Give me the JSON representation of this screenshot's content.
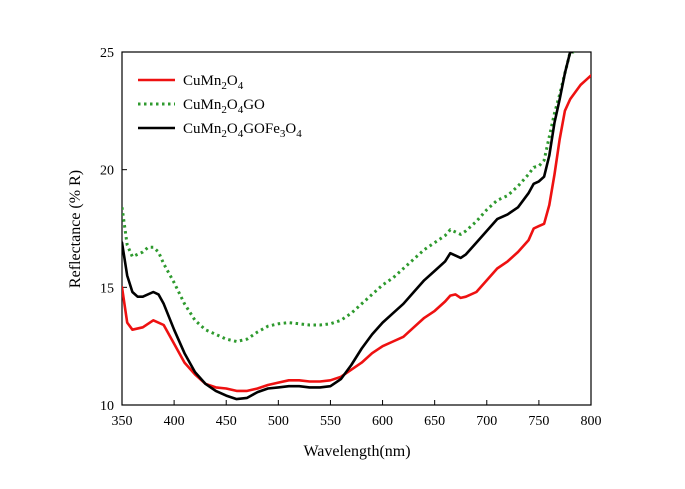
{
  "chart_data": {
    "type": "line",
    "title": "",
    "xlabel": "Wavelength(nm)",
    "ylabel": "Reflectance (% R)",
    "xlim": [
      350,
      800
    ],
    "ylim": [
      10,
      25
    ],
    "x_ticks": [
      350,
      400,
      450,
      500,
      550,
      600,
      650,
      700,
      750,
      800
    ],
    "y_ticks": [
      10,
      15,
      20,
      25
    ],
    "legend_position": "top-left",
    "series": [
      {
        "name": "CuMn2O4",
        "legend": {
          "base": "CuMn",
          "s1": "2",
          "m1": "O",
          "s2": "4"
        },
        "color": "#ee1111",
        "style": "solid",
        "points": [
          [
            350,
            15.0
          ],
          [
            355,
            13.5
          ],
          [
            360,
            13.2
          ],
          [
            370,
            13.3
          ],
          [
            380,
            13.6
          ],
          [
            390,
            13.4
          ],
          [
            400,
            12.6
          ],
          [
            410,
            11.8
          ],
          [
            420,
            11.3
          ],
          [
            430,
            10.9
          ],
          [
            440,
            10.75
          ],
          [
            450,
            10.7
          ],
          [
            460,
            10.6
          ],
          [
            470,
            10.6
          ],
          [
            480,
            10.7
          ],
          [
            490,
            10.85
          ],
          [
            500,
            10.95
          ],
          [
            510,
            11.05
          ],
          [
            520,
            11.05
          ],
          [
            530,
            11.0
          ],
          [
            540,
            11.0
          ],
          [
            550,
            11.05
          ],
          [
            560,
            11.2
          ],
          [
            570,
            11.5
          ],
          [
            580,
            11.8
          ],
          [
            590,
            12.2
          ],
          [
            600,
            12.5
          ],
          [
            610,
            12.7
          ],
          [
            620,
            12.9
          ],
          [
            630,
            13.3
          ],
          [
            640,
            13.7
          ],
          [
            650,
            14.0
          ],
          [
            660,
            14.4
          ],
          [
            665,
            14.65
          ],
          [
            670,
            14.7
          ],
          [
            675,
            14.55
          ],
          [
            680,
            14.6
          ],
          [
            690,
            14.8
          ],
          [
            700,
            15.3
          ],
          [
            710,
            15.8
          ],
          [
            720,
            16.1
          ],
          [
            730,
            16.5
          ],
          [
            740,
            17.0
          ],
          [
            745,
            17.5
          ],
          [
            750,
            17.6
          ],
          [
            755,
            17.7
          ],
          [
            760,
            18.5
          ],
          [
            765,
            19.8
          ],
          [
            770,
            21.3
          ],
          [
            775,
            22.5
          ],
          [
            780,
            23.0
          ],
          [
            785,
            23.3
          ],
          [
            790,
            23.6
          ],
          [
            795,
            23.8
          ],
          [
            800,
            24.0
          ]
        ]
      },
      {
        "name": "CuMn2O4GO",
        "legend": {
          "base": "CuMn",
          "s1": "2",
          "m1": "O",
          "s2": "4",
          "tail": "GO"
        },
        "color": "#2e9a2e",
        "style": "dotted",
        "points": [
          [
            350,
            18.4
          ],
          [
            355,
            16.8
          ],
          [
            360,
            16.3
          ],
          [
            365,
            16.4
          ],
          [
            370,
            16.5
          ],
          [
            375,
            16.7
          ],
          [
            380,
            16.7
          ],
          [
            385,
            16.5
          ],
          [
            390,
            16.0
          ],
          [
            400,
            15.2
          ],
          [
            410,
            14.3
          ],
          [
            420,
            13.6
          ],
          [
            430,
            13.2
          ],
          [
            440,
            13.0
          ],
          [
            450,
            12.8
          ],
          [
            460,
            12.7
          ],
          [
            470,
            12.8
          ],
          [
            480,
            13.1
          ],
          [
            490,
            13.35
          ],
          [
            500,
            13.45
          ],
          [
            510,
            13.5
          ],
          [
            520,
            13.45
          ],
          [
            530,
            13.4
          ],
          [
            540,
            13.4
          ],
          [
            550,
            13.45
          ],
          [
            560,
            13.6
          ],
          [
            570,
            13.9
          ],
          [
            580,
            14.3
          ],
          [
            590,
            14.7
          ],
          [
            600,
            15.1
          ],
          [
            610,
            15.4
          ],
          [
            620,
            15.8
          ],
          [
            630,
            16.2
          ],
          [
            640,
            16.6
          ],
          [
            650,
            16.9
          ],
          [
            660,
            17.2
          ],
          [
            665,
            17.45
          ],
          [
            670,
            17.35
          ],
          [
            675,
            17.25
          ],
          [
            680,
            17.4
          ],
          [
            690,
            17.8
          ],
          [
            700,
            18.3
          ],
          [
            710,
            18.7
          ],
          [
            720,
            18.9
          ],
          [
            730,
            19.3
          ],
          [
            740,
            19.8
          ],
          [
            745,
            20.1
          ],
          [
            750,
            20.15
          ],
          [
            755,
            20.4
          ],
          [
            760,
            21.4
          ],
          [
            765,
            22.4
          ],
          [
            770,
            23.2
          ],
          [
            775,
            24.1
          ],
          [
            780,
            25.0
          ],
          [
            785,
            25.0
          ]
        ]
      },
      {
        "name": "CuMn2O4GOFe3O4",
        "legend": {
          "base": "CuMn",
          "s1": "2",
          "m1": "O",
          "s2": "4",
          "tail": "GOFe",
          "s3": "3",
          "m2": "O",
          "s4": "4"
        },
        "color": "#000000",
        "style": "solid",
        "points": [
          [
            350,
            16.9
          ],
          [
            355,
            15.5
          ],
          [
            360,
            14.8
          ],
          [
            365,
            14.6
          ],
          [
            370,
            14.6
          ],
          [
            380,
            14.8
          ],
          [
            385,
            14.7
          ],
          [
            390,
            14.3
          ],
          [
            400,
            13.2
          ],
          [
            410,
            12.2
          ],
          [
            420,
            11.4
          ],
          [
            430,
            10.9
          ],
          [
            440,
            10.6
          ],
          [
            450,
            10.4
          ],
          [
            460,
            10.25
          ],
          [
            470,
            10.3
          ],
          [
            480,
            10.55
          ],
          [
            490,
            10.7
          ],
          [
            500,
            10.75
          ],
          [
            510,
            10.8
          ],
          [
            520,
            10.8
          ],
          [
            530,
            10.75
          ],
          [
            540,
            10.75
          ],
          [
            550,
            10.8
          ],
          [
            560,
            11.1
          ],
          [
            570,
            11.7
          ],
          [
            580,
            12.4
          ],
          [
            590,
            13.0
          ],
          [
            600,
            13.5
          ],
          [
            610,
            13.9
          ],
          [
            620,
            14.3
          ],
          [
            630,
            14.8
          ],
          [
            640,
            15.3
          ],
          [
            650,
            15.7
          ],
          [
            660,
            16.1
          ],
          [
            665,
            16.45
          ],
          [
            670,
            16.35
          ],
          [
            675,
            16.25
          ],
          [
            680,
            16.4
          ],
          [
            690,
            16.9
          ],
          [
            700,
            17.4
          ],
          [
            710,
            17.9
          ],
          [
            720,
            18.1
          ],
          [
            730,
            18.4
          ],
          [
            740,
            19.0
          ],
          [
            745,
            19.4
          ],
          [
            750,
            19.5
          ],
          [
            755,
            19.7
          ],
          [
            760,
            20.6
          ],
          [
            765,
            22.0
          ],
          [
            770,
            23.0
          ],
          [
            775,
            24.1
          ],
          [
            780,
            25.0
          ],
          [
            782,
            25.0
          ]
        ]
      }
    ]
  }
}
